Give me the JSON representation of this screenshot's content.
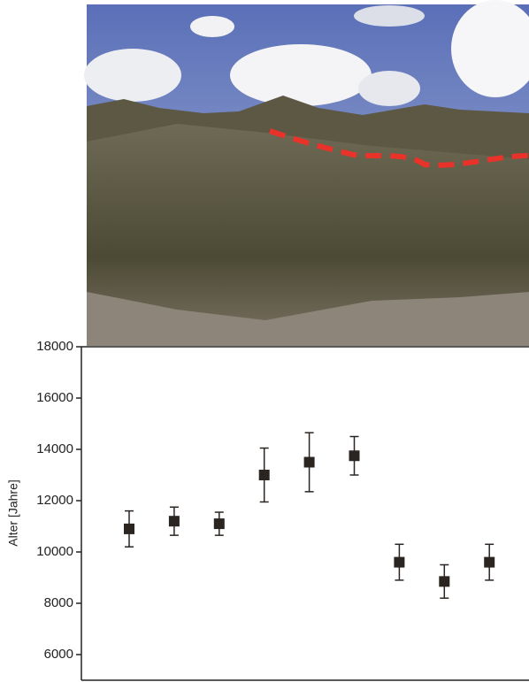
{
  "chart_data": {
    "type": "errorbar",
    "y_label": "Alter [Jahre]",
    "categories": [
      null,
      null,
      null,
      null,
      null,
      null,
      null,
      null,
      null
    ],
    "values": [
      10900,
      11200,
      11100,
      13000,
      13500,
      13750,
      9600,
      8850,
      9600
    ],
    "errors": [
      700,
      550,
      450,
      1050,
      1150,
      750,
      700,
      650,
      700
    ],
    "color": "#2b2522",
    "ylim": [
      5000,
      18000
    ],
    "yticks": [
      6000,
      8000,
      10000,
      12000,
      14000,
      16000,
      18000
    ]
  }
}
